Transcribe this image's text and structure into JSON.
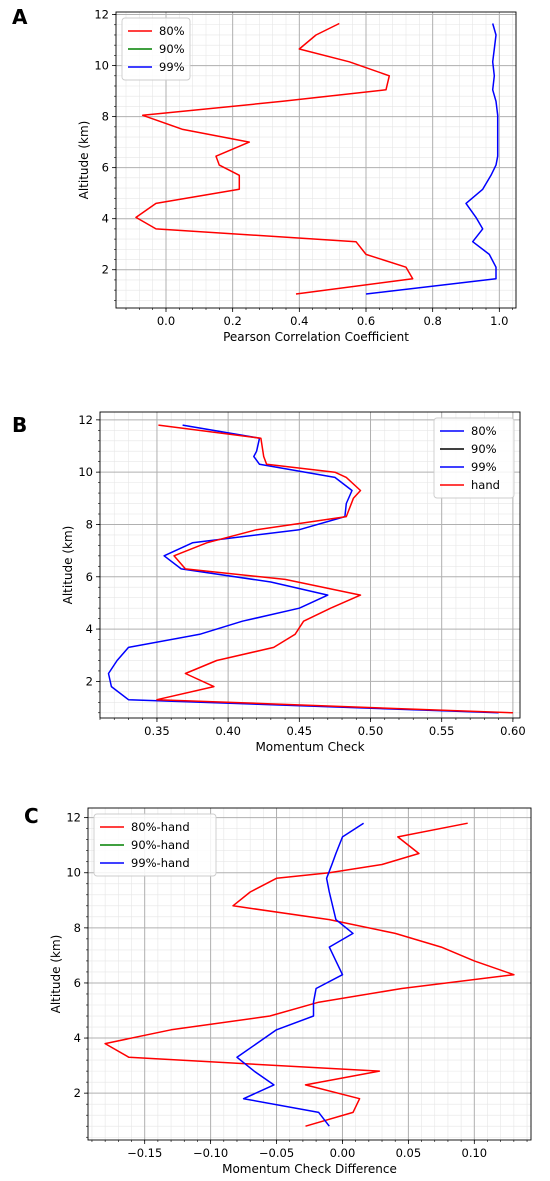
{
  "chart_data": [
    {
      "panel": "A",
      "type": "line",
      "xlabel": "Pearson Correlation Coefficient",
      "ylabel": "Altitude (km)",
      "xlim": [
        -0.15,
        1.05
      ],
      "ylim": [
        0.5,
        12.1
      ],
      "xticks": [
        0.0,
        0.2,
        0.4,
        0.6,
        0.8,
        1.0
      ],
      "xtick_labels": [
        "0.0",
        "0.2",
        "0.4",
        "0.6",
        "0.8",
        "1.0"
      ],
      "yticks": [
        2,
        4,
        6,
        8,
        10,
        12
      ],
      "ytick_labels": [
        "2",
        "4",
        "6",
        "8",
        "10",
        "12"
      ],
      "grid": true,
      "legend": "upper-left",
      "series": [
        {
          "name": "80%",
          "color": "#ff0000",
          "points": [
            [
              0.52,
              11.65
            ],
            [
              0.45,
              11.2
            ],
            [
              0.4,
              10.65
            ],
            [
              0.55,
              10.15
            ],
            [
              0.67,
              9.6
            ],
            [
              0.66,
              9.05
            ],
            [
              0.35,
              8.6
            ],
            [
              -0.07,
              8.05
            ],
            [
              0.05,
              7.5
            ],
            [
              0.25,
              7.0
            ],
            [
              0.15,
              6.45
            ],
            [
              0.16,
              6.1
            ],
            [
              0.22,
              5.7
            ],
            [
              0.22,
              5.15
            ],
            [
              -0.03,
              4.6
            ],
            [
              -0.09,
              4.05
            ],
            [
              -0.03,
              3.6
            ],
            [
              0.57,
              3.1
            ],
            [
              0.6,
              2.6
            ],
            [
              0.72,
              2.1
            ],
            [
              0.74,
              1.65
            ],
            [
              0.39,
              1.05
            ]
          ]
        },
        {
          "name": "90%",
          "color": "#008000",
          "points": []
        },
        {
          "name": "99%",
          "color": "#0000ff",
          "points": [
            [
              0.98,
              11.65
            ],
            [
              0.99,
              11.2
            ],
            [
              0.985,
              10.65
            ],
            [
              0.98,
              10.15
            ],
            [
              0.985,
              9.6
            ],
            [
              0.98,
              9.05
            ],
            [
              0.99,
              8.6
            ],
            [
              0.995,
              8.05
            ],
            [
              0.995,
              7.5
            ],
            [
              0.995,
              7.0
            ],
            [
              0.995,
              6.45
            ],
            [
              0.99,
              6.1
            ],
            [
              0.975,
              5.7
            ],
            [
              0.95,
              5.15
            ],
            [
              0.9,
              4.6
            ],
            [
              0.93,
              4.05
            ],
            [
              0.95,
              3.6
            ],
            [
              0.92,
              3.1
            ],
            [
              0.97,
              2.6
            ],
            [
              0.99,
              2.1
            ],
            [
              0.99,
              1.65
            ],
            [
              0.6,
              1.05
            ]
          ]
        }
      ]
    },
    {
      "panel": "B",
      "type": "line",
      "xlabel": "Momentum Check",
      "ylabel": "Altitude (km)",
      "xlim": [
        0.31,
        0.605
      ],
      "ylim": [
        0.6,
        12.3
      ],
      "xticks": [
        0.35,
        0.4,
        0.45,
        0.5,
        0.55,
        0.6
      ],
      "xtick_labels": [
        "0.35",
        "0.40",
        "0.45",
        "0.50",
        "0.55",
        "0.60"
      ],
      "yticks": [
        2,
        4,
        6,
        8,
        10,
        12
      ],
      "ytick_labels": [
        "2",
        "4",
        "6",
        "8",
        "10",
        "12"
      ],
      "grid": true,
      "legend": "upper-right",
      "series": [
        {
          "name": "80%",
          "color": "#0000ff",
          "points": [
            [
              0.368,
              11.8
            ],
            [
              0.422,
              11.3
            ],
            [
              0.42,
              10.8
            ],
            [
              0.418,
              10.6
            ],
            [
              0.422,
              10.3
            ],
            [
              0.475,
              9.8
            ],
            [
              0.487,
              9.3
            ],
            [
              0.483,
              8.8
            ],
            [
              0.482,
              8.3
            ],
            [
              0.45,
              7.8
            ],
            [
              0.375,
              7.3
            ],
            [
              0.355,
              6.8
            ],
            [
              0.367,
              6.3
            ],
            [
              0.43,
              5.8
            ],
            [
              0.47,
              5.3
            ],
            [
              0.45,
              4.8
            ],
            [
              0.41,
              4.3
            ],
            [
              0.38,
              3.8
            ],
            [
              0.33,
              3.3
            ],
            [
              0.322,
              2.8
            ],
            [
              0.316,
              2.3
            ],
            [
              0.318,
              1.8
            ],
            [
              0.33,
              1.3
            ],
            [
              0.59,
              0.8
            ]
          ]
        },
        {
          "name": "90%",
          "color": "#000000",
          "points": []
        },
        {
          "name": "99%",
          "color": "#0000ff",
          "points": []
        },
        {
          "name": "hand",
          "color": "#ff0000",
          "points": [
            [
              0.351,
              11.8
            ],
            [
              0.423,
              11.3
            ],
            [
              0.425,
              10.6
            ],
            [
              0.427,
              10.3
            ],
            [
              0.475,
              10.0
            ],
            [
              0.483,
              9.8
            ],
            [
              0.493,
              9.3
            ],
            [
              0.488,
              9.0
            ],
            [
              0.483,
              8.3
            ],
            [
              0.42,
              7.8
            ],
            [
              0.385,
              7.3
            ],
            [
              0.362,
              6.8
            ],
            [
              0.37,
              6.3
            ],
            [
              0.44,
              5.9
            ],
            [
              0.493,
              5.3
            ],
            [
              0.472,
              4.8
            ],
            [
              0.453,
              4.3
            ],
            [
              0.447,
              3.8
            ],
            [
              0.432,
              3.3
            ],
            [
              0.392,
              2.8
            ],
            [
              0.37,
              2.3
            ],
            [
              0.39,
              1.8
            ],
            [
              0.35,
              1.3
            ],
            [
              0.6,
              0.8
            ]
          ]
        }
      ]
    },
    {
      "panel": "C",
      "type": "line",
      "xlabel": "Momentum Check Difference",
      "ylabel": "Altitude (km)",
      "xlim": [
        -0.193,
        0.143
      ],
      "ylim": [
        0.3,
        12.35
      ],
      "xticks": [
        -0.15,
        -0.1,
        -0.05,
        0.0,
        0.05,
        0.1
      ],
      "xtick_labels": [
        "−0.15",
        "−0.10",
        "−0.05",
        "0.00",
        "0.05",
        "0.10"
      ],
      "yticks": [
        2,
        4,
        6,
        8,
        10,
        12
      ],
      "ytick_labels": [
        "2",
        "4",
        "6",
        "8",
        "10",
        "12"
      ],
      "grid": true,
      "legend": "upper-left",
      "series": [
        {
          "name": "80%-hand",
          "color": "#ff0000",
          "points": [
            [
              0.095,
              11.8
            ],
            [
              0.042,
              11.3
            ],
            [
              0.058,
              10.7
            ],
            [
              0.03,
              10.3
            ],
            [
              -0.01,
              10.0
            ],
            [
              -0.05,
              9.8
            ],
            [
              -0.07,
              9.3
            ],
            [
              -0.083,
              8.8
            ],
            [
              -0.01,
              8.3
            ],
            [
              0.04,
              7.8
            ],
            [
              0.075,
              7.3
            ],
            [
              0.1,
              6.8
            ],
            [
              0.13,
              6.3
            ],
            [
              0.045,
              5.8
            ],
            [
              -0.018,
              5.3
            ],
            [
              -0.055,
              4.8
            ],
            [
              -0.13,
              4.3
            ],
            [
              -0.18,
              3.8
            ],
            [
              -0.162,
              3.3
            ],
            [
              0.028,
              2.8
            ],
            [
              -0.028,
              2.3
            ],
            [
              0.013,
              1.8
            ],
            [
              0.008,
              1.3
            ],
            [
              -0.028,
              0.8
            ]
          ]
        },
        {
          "name": "90%-hand",
          "color": "#008000",
          "points": []
        },
        {
          "name": "99%-hand",
          "color": "#0000ff",
          "points": [
            [
              0.016,
              11.8
            ],
            [
              0.0,
              11.3
            ],
            [
              -0.005,
              10.7
            ],
            [
              -0.008,
              10.3
            ],
            [
              -0.012,
              9.8
            ],
            [
              -0.01,
              9.3
            ],
            [
              -0.005,
              8.3
            ],
            [
              0.008,
              7.8
            ],
            [
              -0.01,
              7.3
            ],
            [
              -0.005,
              6.8
            ],
            [
              0.0,
              6.3
            ],
            [
              -0.02,
              5.8
            ],
            [
              -0.022,
              5.3
            ],
            [
              -0.022,
              4.8
            ],
            [
              -0.05,
              4.3
            ],
            [
              -0.08,
              3.3
            ],
            [
              -0.067,
              2.8
            ],
            [
              -0.052,
              2.3
            ],
            [
              -0.075,
              1.8
            ],
            [
              -0.018,
              1.3
            ],
            [
              -0.01,
              0.8
            ]
          ]
        }
      ]
    }
  ]
}
